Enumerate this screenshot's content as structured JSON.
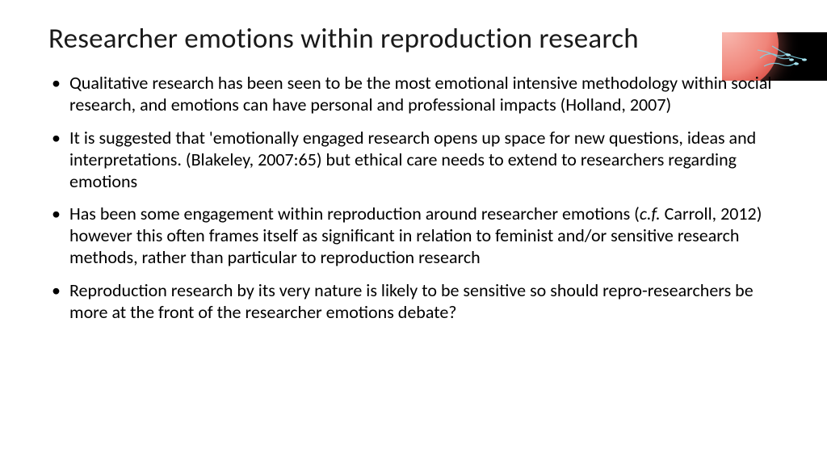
{
  "slide": {
    "title": "Researcher emotions within reproduction research",
    "bullets": [
      "Qualitative research has been seen to be the most emotional intensive methodology within social research, and emotions can have personal and professional impacts (Holland, 2007)",
      "It is suggested that 'emotionally engaged research opens up space for new questions, ideas and interpretations. (Blakeley, 2007:65) but ethical care needs to extend to researchers regarding emotions",
      "Has been some engagement within reproduction around researcher emotions (c.f. Carroll, 2012) however this often frames itself as significant in relation to feminist and/or sensitive research methods, rather than particular to reproduction research",
      "Reproduction research by its very nature is likely to be sensitive so should repro-researchers be more at the front of the researcher emotions debate?"
    ]
  },
  "style": {
    "background_color": "#ffffff",
    "text_color": "#000000",
    "title_fontsize": 35,
    "body_fontsize": 22,
    "font_family": "Calibri",
    "image": {
      "name": "fertilization-illustration",
      "bg": "#000000",
      "egg_color": "#f0857a",
      "sperm_color": "#7fd3e6"
    }
  }
}
